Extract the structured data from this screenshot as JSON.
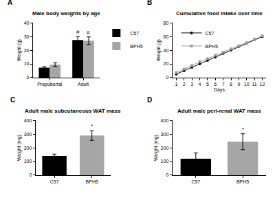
{
  "chart_data": [
    {
      "panel": "A",
      "type": "bar",
      "title": "Male body weights by age",
      "categories": [
        "Prepubertal",
        "Adult"
      ],
      "series": [
        {
          "name": "C57",
          "color": "#000000",
          "values": [
            7.2,
            27.5
          ],
          "errors": [
            0.8,
            2.5
          ]
        },
        {
          "name": "BPH5",
          "color": "#a6a6a6",
          "values": [
            9.5,
            27
          ],
          "errors": [
            1.3,
            2.8
          ]
        }
      ],
      "ylabel": "Weight (g)",
      "ylim": [
        0,
        40
      ],
      "yticks": [
        0,
        10,
        20,
        30,
        40
      ],
      "grid": false,
      "legend": "right",
      "annotations": [
        {
          "category": "Adult",
          "series": "C57",
          "text": "#"
        },
        {
          "category": "Adult",
          "series": "BPH5",
          "text": "#"
        }
      ]
    },
    {
      "panel": "B",
      "type": "line",
      "title": "Cumulative food intake over time",
      "x": [
        1,
        2,
        3,
        4,
        5,
        6,
        7,
        8,
        9,
        10,
        11,
        12
      ],
      "series": [
        {
          "name": "C57",
          "color": "#000000",
          "marker": "circle",
          "line_style": "solid",
          "values": [
            5,
            10,
            15,
            20,
            25,
            30,
            35.5,
            40.5,
            45.5,
            50.5,
            55.5,
            60
          ]
        },
        {
          "name": "BPH5",
          "color": "#999999",
          "marker": "square",
          "line_style": "solid",
          "values": [
            7,
            12.5,
            17.5,
            23,
            27.5,
            32.5,
            37,
            42,
            46.5,
            51,
            56,
            61
          ]
        }
      ],
      "xlabel": "Days",
      "ylabel": "Weight (g)",
      "xlim": [
        0.5,
        12.5
      ],
      "xticks": [
        1,
        2,
        3,
        4,
        5,
        6,
        7,
        8,
        9,
        10,
        11,
        12
      ],
      "ylim": [
        0,
        80
      ],
      "yticks": [
        0,
        20,
        40,
        60,
        80
      ],
      "grid": false,
      "legend": "top left"
    },
    {
      "panel": "C",
      "type": "bar",
      "title": "Adult male subcutaneous WAT mass",
      "categories": [
        "C57",
        "BPH5"
      ],
      "values": [
        140,
        290
      ],
      "errors": [
        14,
        35
      ],
      "colors": [
        "#000000",
        "#a6a6a6"
      ],
      "ylabel": "Weight (mg)",
      "ylim": [
        0,
        400
      ],
      "yticks": [
        0,
        100,
        200,
        300,
        400
      ],
      "grid": false,
      "annotations": [
        {
          "category": "BPH5",
          "text": "*"
        }
      ]
    },
    {
      "panel": "D",
      "type": "bar",
      "title": "Adult male peri-renal WAT mass",
      "categories": [
        "C57",
        "BPH5"
      ],
      "values": [
        120,
        245
      ],
      "errors": [
        42,
        58
      ],
      "colors": [
        "#000000",
        "#a6a6a6"
      ],
      "ylabel": "Weight (mg)",
      "ylim": [
        0,
        400
      ],
      "yticks": [
        0,
        100,
        200,
        300,
        400
      ],
      "grid": false,
      "annotations": [
        {
          "category": "BPH5",
          "text": "*"
        }
      ]
    }
  ]
}
